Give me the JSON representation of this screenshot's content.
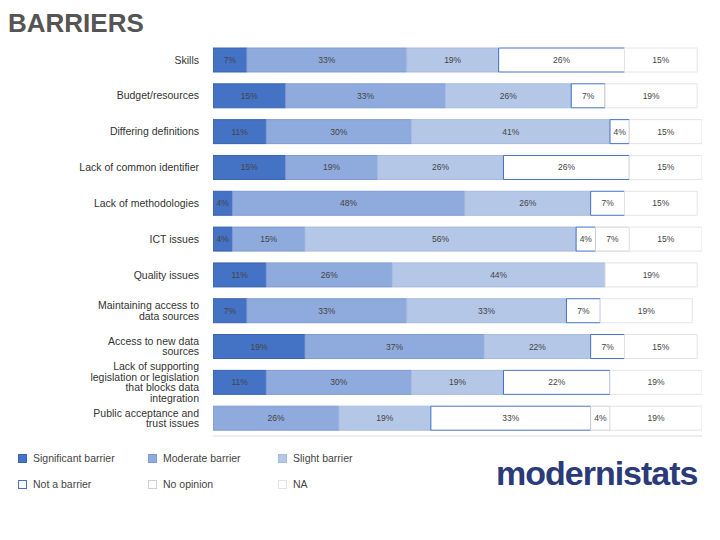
{
  "chart_data": {
    "type": "bar",
    "title": "BARRIERS",
    "orientation": "horizontal",
    "stacked": true,
    "data_labels": true,
    "tick_labels": "y",
    "legend": "bottom-left",
    "annotations": [
      "modernistats"
    ],
    "xlim": [
      0,
      101
    ],
    "xticks": [],
    "categories": [
      "Skills",
      "Budget/resources",
      "Differing definitions",
      "Lack of common identifier",
      "Lack of methodologies",
      "ICT issues",
      "Quality issues",
      "Maintaining access to data sources",
      "Access to new data sources",
      "Lack of supporting legislation or legislation that blocks data integration",
      "Public acceptance and trust issues"
    ],
    "series": [
      {
        "name": "Significant barrier",
        "color": "#4472c4",
        "values": [
          7,
          15,
          11,
          15,
          4,
          4,
          11,
          7,
          19,
          11,
          null
        ],
        "value_labels": [
          "7%",
          "15%",
          "11%",
          "15%",
          "4%",
          "4%",
          "11%",
          "7%",
          "19%",
          "11%",
          null
        ]
      },
      {
        "name": "Moderate barrier",
        "color": "#8faadc",
        "values": [
          33,
          33,
          30,
          19,
          48,
          15,
          26,
          33,
          37,
          30,
          26
        ],
        "value_labels": [
          "33%",
          "33%",
          "30%",
          "19%",
          "48%",
          "15%",
          "26%",
          "33%",
          "37%",
          "30%",
          "26%"
        ]
      },
      {
        "name": "Slight barrier",
        "color": "#b4c7e7",
        "values": [
          19,
          26,
          41,
          26,
          26,
          56,
          44,
          33,
          22,
          19,
          19
        ],
        "value_labels": [
          "19%",
          "26%",
          "41%",
          "26%",
          "26%",
          "56%",
          "44%",
          "33%",
          "22%",
          "19%",
          "19%"
        ]
      },
      {
        "name": "Not a barrier",
        "color": "#ffffff",
        "values": [
          26,
          7,
          4,
          26,
          7,
          4,
          null,
          7,
          7,
          22,
          33
        ],
        "value_labels": [
          "26%",
          "7%",
          "4%",
          "26%",
          "7%",
          "4%",
          null,
          "7%",
          "7%",
          "22%",
          "33%"
        ]
      },
      {
        "name": "No opinion",
        "color": "#ffffff",
        "values": [
          null,
          null,
          null,
          null,
          null,
          7,
          null,
          null,
          null,
          null,
          4
        ],
        "value_labels": [
          null,
          null,
          null,
          null,
          null,
          "7%",
          null,
          null,
          null,
          null,
          "4%"
        ]
      },
      {
        "name": "NA",
        "color": "#ffffff",
        "values": [
          15,
          19,
          15,
          15,
          15,
          15,
          19,
          19,
          15,
          19,
          19
        ],
        "value_labels": [
          "15%",
          "19%",
          "15%",
          "15%",
          "15%",
          "15%",
          "19%",
          "19%",
          "15%",
          "19%",
          "19%"
        ]
      }
    ]
  }
}
